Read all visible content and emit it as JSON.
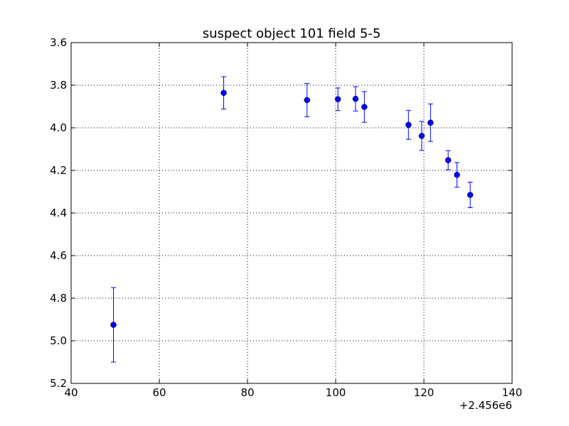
{
  "chart_data": {
    "type": "scatter",
    "title": "suspect object 101 field 5-5",
    "xlabel": "",
    "ylabel": "",
    "x_offset_label": "+2.456e6",
    "xlim": [
      40,
      140
    ],
    "ylim": [
      5.2,
      3.6
    ],
    "y_inverted": true,
    "grid": true,
    "x_ticks": [
      40,
      60,
      80,
      100,
      120,
      140
    ],
    "x_tick_labels": [
      "40",
      "60",
      "80",
      "100",
      "120",
      "140"
    ],
    "y_ticks": [
      3.6,
      3.8,
      4.0,
      4.2,
      4.4,
      4.6,
      4.8,
      5.0,
      5.2
    ],
    "y_tick_labels": [
      "3.6",
      "3.8",
      "4.0",
      "4.2",
      "4.4",
      "4.6",
      "4.8",
      "5.0",
      "5.2"
    ],
    "marker_color": "#0000ff",
    "points": [
      {
        "x": 49.6,
        "y": 4.925,
        "err": 0.175
      },
      {
        "x": 74.6,
        "y": 3.836,
        "err": 0.076
      },
      {
        "x": 93.5,
        "y": 3.87,
        "err": 0.078
      },
      {
        "x": 100.5,
        "y": 3.866,
        "err": 0.053
      },
      {
        "x": 104.5,
        "y": 3.864,
        "err": 0.057
      },
      {
        "x": 106.5,
        "y": 3.902,
        "err": 0.072
      },
      {
        "x": 116.5,
        "y": 3.986,
        "err": 0.068
      },
      {
        "x": 119.5,
        "y": 4.038,
        "err": 0.068
      },
      {
        "x": 121.5,
        "y": 3.976,
        "err": 0.088
      },
      {
        "x": 125.5,
        "y": 4.152,
        "err": 0.045
      },
      {
        "x": 127.5,
        "y": 4.221,
        "err": 0.058
      },
      {
        "x": 130.5,
        "y": 4.315,
        "err": 0.06
      }
    ]
  }
}
